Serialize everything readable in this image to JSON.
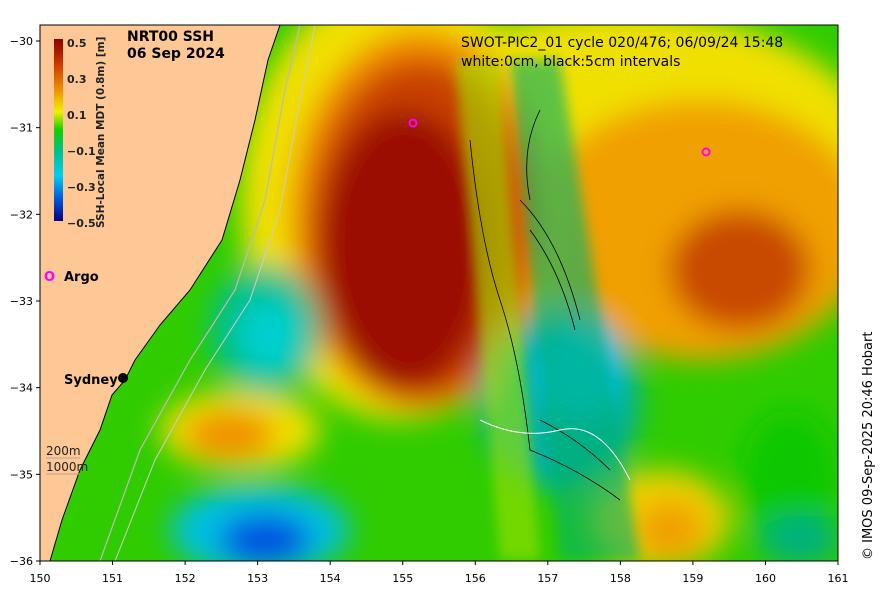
{
  "title": {
    "line1": "NRT00 SSH",
    "line2": "06 Sep 2024"
  },
  "swot": {
    "line1": "SWOT-PIC2_01 cycle 020/476; 06/09/24 15:48",
    "line2": "white:0cm, black:5cm intervals"
  },
  "colorbar": {
    "label": "SSH-Local Mean MDT (0.8m) [m]",
    "ticks": [
      "0.5",
      "0.3",
      "0.1",
      "−0.1",
      "−0.3",
      "−0.5"
    ],
    "range": [
      -0.5,
      0.5
    ]
  },
  "legend": {
    "argo_symbol": "O",
    "argo_label": "Argo",
    "argo_color": "#ff00ff"
  },
  "places": {
    "sydney": "Sydney"
  },
  "depth": {
    "c200": "200m",
    "c1000": "1000m"
  },
  "x_ticks": [
    "150",
    "151",
    "152",
    "153",
    "154",
    "155",
    "156",
    "157",
    "158",
    "159",
    "160",
    "161"
  ],
  "y_ticks": [
    "−30",
    "−31",
    "−32",
    "−33",
    "−34",
    "−35",
    "−36"
  ],
  "credit": "© IMOS 09-Sep-2025 20:46 Hobart",
  "colors": {
    "land": "#fdc896",
    "argo": "#ff00ff"
  }
}
